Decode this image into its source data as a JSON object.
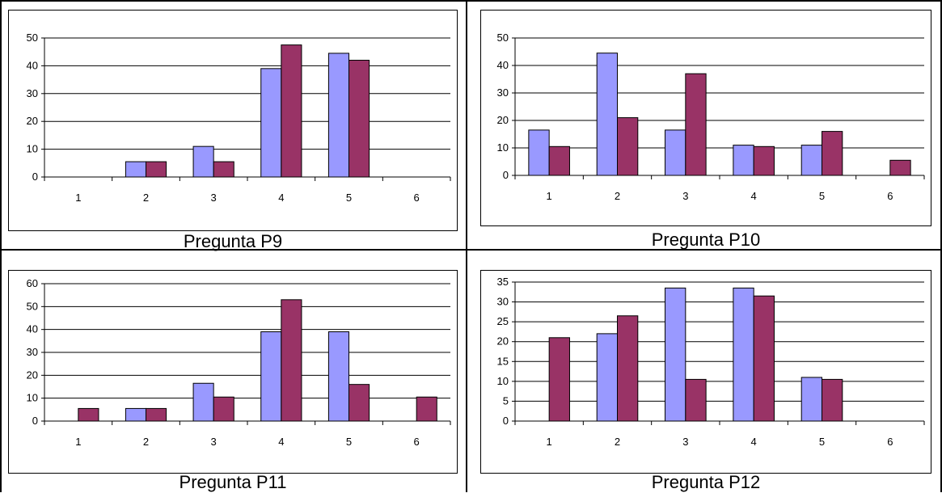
{
  "colors": {
    "series_a": "#9999ff",
    "series_b": "#993366"
  },
  "panels": [
    {
      "caption": "Pregunta P9"
    },
    {
      "caption": "Pregunta P10"
    },
    {
      "caption": "Pregunta P11"
    },
    {
      "caption": "Pregunta P12"
    }
  ],
  "chart_data": [
    {
      "type": "bar",
      "categories": [
        "1",
        "2",
        "3",
        "4",
        "5",
        "6"
      ],
      "series": [
        {
          "values": [
            0,
            5.5,
            11,
            39,
            44.5,
            0
          ]
        },
        {
          "values": [
            0,
            5.5,
            5.5,
            47.5,
            42,
            0
          ]
        }
      ],
      "ylim": [
        0,
        50
      ],
      "yticks": [
        "0",
        "10",
        "20",
        "30",
        "40",
        "50"
      ],
      "grid": true
    },
    {
      "type": "bar",
      "categories": [
        "1",
        "2",
        "3",
        "4",
        "5",
        "6"
      ],
      "series": [
        {
          "values": [
            16.5,
            44.5,
            16.5,
            11,
            11,
            0
          ]
        },
        {
          "values": [
            10.5,
            21,
            37,
            10.5,
            16,
            5.5
          ]
        }
      ],
      "ylim": [
        0,
        50
      ],
      "yticks": [
        "0",
        "10",
        "20",
        "30",
        "40",
        "50"
      ],
      "grid": true
    },
    {
      "type": "bar",
      "categories": [
        "1",
        "2",
        "3",
        "4",
        "5",
        "6"
      ],
      "series": [
        {
          "values": [
            0,
            5.5,
            16.5,
            39,
            39,
            0
          ]
        },
        {
          "values": [
            5.5,
            5.5,
            10.5,
            53,
            16,
            10.5
          ]
        }
      ],
      "ylim": [
        0,
        60
      ],
      "yticks": [
        "0",
        "10",
        "20",
        "30",
        "40",
        "50",
        "60"
      ],
      "grid": true
    },
    {
      "type": "bar",
      "categories": [
        "1",
        "2",
        "3",
        "4",
        "5",
        "6"
      ],
      "series": [
        {
          "values": [
            0,
            22,
            33.5,
            33.5,
            11,
            0
          ]
        },
        {
          "values": [
            21,
            26.5,
            10.5,
            31.5,
            10.5,
            0
          ]
        }
      ],
      "ylim": [
        0,
        35
      ],
      "yticks": [
        "0",
        "5",
        "10",
        "15",
        "20",
        "25",
        "30",
        "35"
      ],
      "grid": true
    }
  ]
}
